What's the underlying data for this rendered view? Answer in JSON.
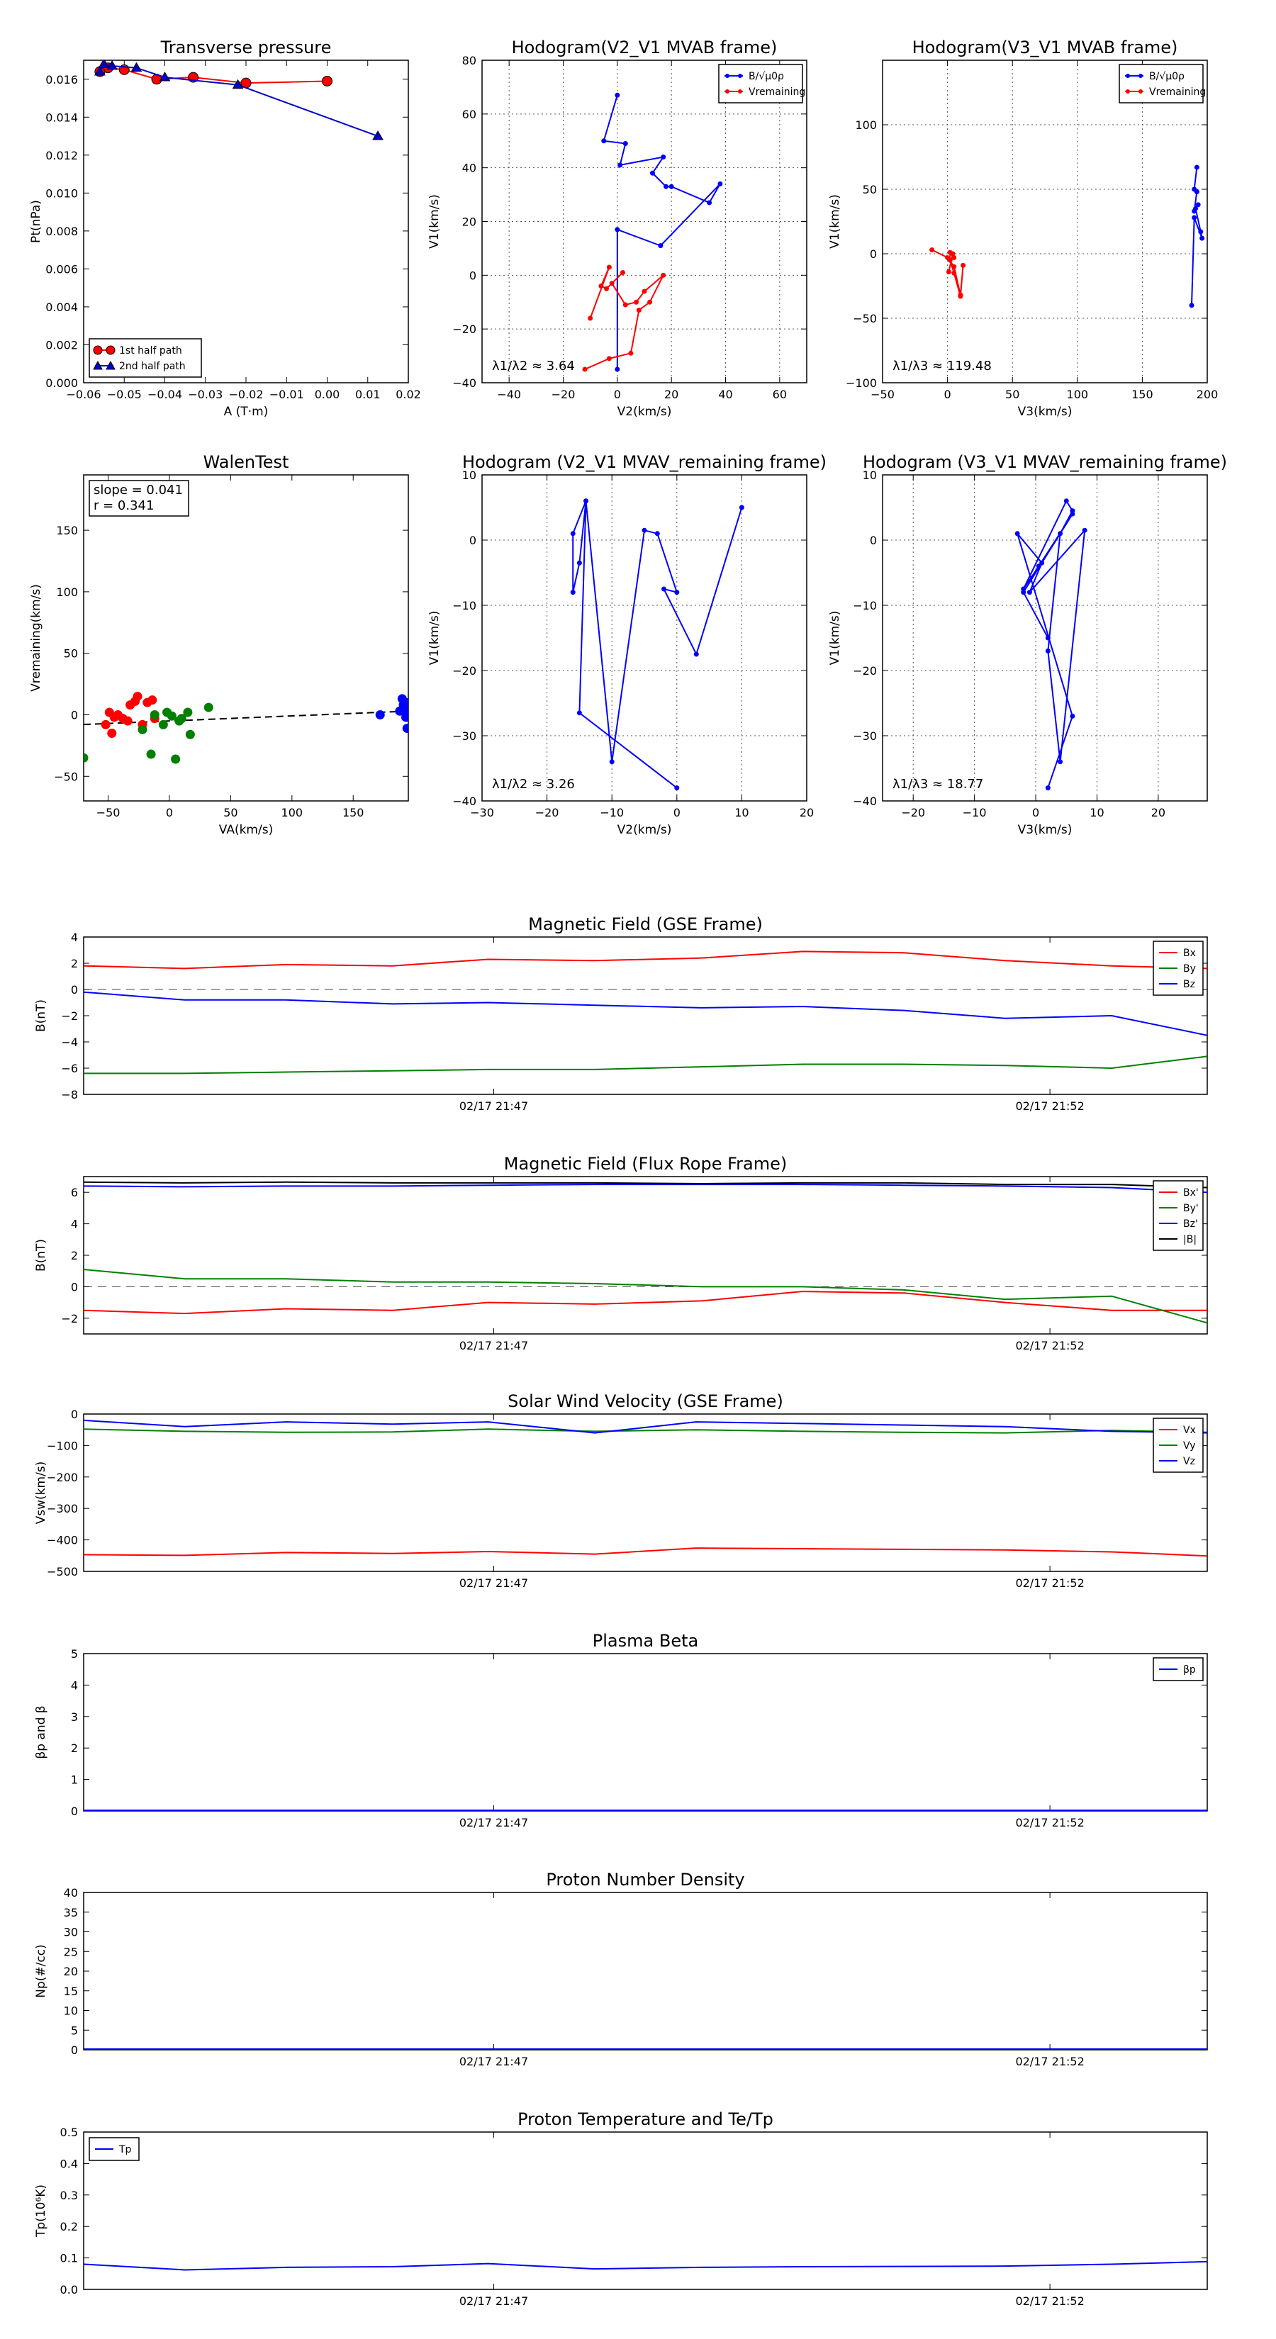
{
  "chart_data": [
    {
      "id": "tp",
      "type": "scatter",
      "title": "Transverse pressure",
      "xlabel": "A (T·m)",
      "ylabel": "Pt(nPa)",
      "xlim": [
        -0.06,
        0.02
      ],
      "ylim": [
        0,
        0.017
      ],
      "xticks": [
        -0.06,
        -0.05,
        -0.04,
        -0.03,
        -0.02,
        -0.01,
        0.0,
        0.01,
        0.02
      ],
      "xticklabels": [
        "−0.06",
        "−0.05",
        "−0.04",
        "−0.03",
        "−0.02",
        "−0.01",
        "0.00",
        "0.01",
        "0.02"
      ],
      "yticks": [
        0,
        0.002,
        0.004,
        0.006,
        0.008,
        0.01,
        0.012,
        0.014,
        0.016
      ],
      "yticklabels": [
        "0.000",
        "0.002",
        "0.004",
        "0.006",
        "0.008",
        "0.010",
        "0.012",
        "0.014",
        "0.016"
      ],
      "legend_loc": "lower-left",
      "series": [
        {
          "name": "1st half path",
          "color": "#ff0000",
          "marker": "circle",
          "x": [
            0.0,
            -0.02,
            -0.033,
            -0.042,
            -0.05,
            -0.054,
            -0.056
          ],
          "y": [
            0.0159,
            0.0158,
            0.0161,
            0.016,
            0.0165,
            0.0166,
            0.0164
          ]
        },
        {
          "name": "2nd half path",
          "color": "#0000cc",
          "marker": "triangle",
          "x": [
            -0.056,
            -0.055,
            -0.053,
            -0.047,
            -0.04,
            -0.022,
            0.0125
          ],
          "y": [
            0.0164,
            0.0168,
            0.0167,
            0.0166,
            0.0161,
            0.0157,
            0.013
          ]
        }
      ]
    },
    {
      "id": "hodo1",
      "type": "line",
      "title": "Hodogram(V2_V1 MVAB frame)",
      "xlabel": "V2(km/s)",
      "ylabel": "V1(km/s)",
      "xlim": [
        -50,
        70
      ],
      "ylim": [
        -40,
        80
      ],
      "xticks": [
        -40,
        -20,
        0,
        20,
        40,
        60
      ],
      "xticklabels": [
        "−40",
        "−20",
        "0",
        "20",
        "40",
        "60"
      ],
      "yticks": [
        -40,
        -20,
        0,
        20,
        40,
        60,
        80
      ],
      "yticklabels": [
        "−40",
        "−20",
        "0",
        "20",
        "40",
        "60",
        "80"
      ],
      "annotation": "λ1/λ2 ≈ 3.64",
      "legend_loc": "top-right",
      "series": [
        {
          "name": "B/√μ0ρ",
          "color": "#0000ff",
          "x": [
            0,
            0,
            16,
            38,
            34,
            20,
            18,
            13,
            17,
            1,
            3,
            -5,
            0
          ],
          "y": [
            -35,
            17,
            11,
            34,
            27,
            33,
            33,
            38,
            44,
            41,
            49,
            50,
            67
          ]
        },
        {
          "name": "Vremaining",
          "color": "#ff0000",
          "x": [
            -12,
            -3,
            5,
            8,
            12,
            17,
            10,
            7,
            3,
            -2,
            2,
            -4,
            -6,
            -3,
            -10
          ],
          "y": [
            -35,
            -31,
            -29,
            -13,
            -10,
            0,
            -6,
            -10,
            -11,
            -3,
            1,
            -5,
            -4,
            3,
            -16
          ]
        }
      ]
    },
    {
      "id": "hodo2",
      "type": "line",
      "title": "Hodogram(V3_V1 MVAB frame)",
      "xlabel": "V3(km/s)",
      "ylabel": "V1(km/s)",
      "xlim": [
        -50,
        200
      ],
      "ylim": [
        -100,
        150
      ],
      "xticks": [
        -50,
        0,
        50,
        100,
        150,
        200
      ],
      "xticklabels": [
        "−50",
        "0",
        "50",
        "100",
        "150",
        "200"
      ],
      "yticks": [
        -100,
        -50,
        0,
        50,
        100
      ],
      "yticklabels": [
        "−100",
        "−50",
        "0",
        "50",
        "100"
      ],
      "annotation": "λ1/λ3 ≈ 119.48",
      "legend_loc": "top-right",
      "series": [
        {
          "name": "B/√μ0ρ",
          "color": "#0000ff",
          "x": [
            188,
            190,
            196,
            195,
            191,
            193,
            190,
            192,
            190,
            192
          ],
          "y": [
            -40,
            28,
            12,
            17,
            35,
            38,
            33,
            48,
            50,
            67
          ]
        },
        {
          "name": "Vremaining",
          "color": "#ff0000",
          "x": [
            -12,
            0,
            5,
            10,
            12,
            10,
            5,
            2,
            2,
            5,
            4,
            1
          ],
          "y": [
            3,
            -3,
            -10,
            -32,
            -9,
            -33,
            -15,
            -5,
            1,
            -3,
            0,
            -14
          ]
        }
      ]
    },
    {
      "id": "walen",
      "type": "scatter",
      "title": "WalenTest",
      "xlabel": "VA(km/s)",
      "ylabel": "Vremaining(km/s)",
      "xlim": [
        -70,
        195
      ],
      "ylim": [
        -70,
        195
      ],
      "xticks": [
        -50,
        0,
        50,
        100,
        150
      ],
      "xticklabels": [
        "−50",
        "0",
        "50",
        "100",
        "150"
      ],
      "yticks": [
        -50,
        0,
        50,
        100,
        150
      ],
      "yticklabels": [
        "−50",
        "0",
        "50",
        "100",
        "150"
      ],
      "annotation": [
        "slope = 0.041",
        "r = 0.341"
      ],
      "fit": {
        "slope": 0.041,
        "intercept": -5,
        "x": [
          -70,
          195
        ]
      },
      "series": [
        {
          "name": "red",
          "color": "#ff0000",
          "x": [
            -52,
            -49,
            -47,
            -45,
            -42,
            -38,
            -34,
            -32,
            -28,
            -26,
            -22,
            -18,
            -14,
            -12
          ],
          "y": [
            -8,
            2,
            -15,
            -2,
            0,
            -3,
            -5,
            8,
            11,
            15,
            -8,
            10,
            12,
            -3
          ]
        },
        {
          "name": "green",
          "color": "#008000",
          "x": [
            -70,
            -22,
            -15,
            -12,
            -5,
            -2,
            2,
            5,
            8,
            10,
            15,
            17,
            32
          ],
          "y": [
            -35,
            -12,
            -32,
            0,
            -8,
            2,
            -1,
            -36,
            -5,
            -3,
            2,
            -16,
            6
          ]
        },
        {
          "name": "blue",
          "color": "#0000ff",
          "x": [
            172,
            188,
            190,
            191,
            192,
            193,
            193,
            194,
            194,
            195
          ],
          "y": [
            0,
            3,
            13,
            8,
            5,
            10,
            -2,
            0,
            -11,
            3
          ]
        }
      ]
    },
    {
      "id": "hodo3",
      "type": "line",
      "title": "Hodogram (V2_V1 MVAV_remaining frame)",
      "xlabel": "V2(km/s)",
      "ylabel": "V1(km/s)",
      "xlim": [
        -30,
        20
      ],
      "ylim": [
        -40,
        10
      ],
      "xticks": [
        -30,
        -20,
        -10,
        0,
        10,
        20
      ],
      "xticklabels": [
        "−30",
        "−20",
        "−10",
        "0",
        "10",
        "20"
      ],
      "yticks": [
        -40,
        -30,
        -20,
        -10,
        0,
        10
      ],
      "yticklabels": [
        "−40",
        "−30",
        "−20",
        "−10",
        "0",
        "10"
      ],
      "annotation": "λ1/λ2 ≈ 3.26",
      "series": [
        {
          "name": "V",
          "color": "#0000ff",
          "x": [
            0,
            -15,
            -14,
            -16,
            -16,
            -15,
            -14,
            -10,
            -5,
            -3,
            0,
            -2,
            3,
            10
          ],
          "y": [
            -38,
            -26.5,
            6,
            1,
            -8,
            -3.5,
            6,
            -34,
            1.5,
            1,
            -8,
            -7.5,
            -17.5,
            5
          ]
        }
      ]
    },
    {
      "id": "hodo4",
      "type": "line",
      "title": "Hodogram (V3_V1 MVAV_remaining frame)",
      "xlabel": "V3(km/s)",
      "ylabel": "V1(km/s)",
      "xlim": [
        -25,
        28
      ],
      "ylim": [
        -40,
        10
      ],
      "xticks": [
        -20,
        -10,
        0,
        10,
        20
      ],
      "xticklabels": [
        "−20",
        "−10",
        "0",
        "10",
        "20"
      ],
      "yticks": [
        -40,
        -30,
        -20,
        -10,
        0,
        10
      ],
      "yticklabels": [
        "−40",
        "−30",
        "−20",
        "−10",
        "0",
        "10"
      ],
      "annotation": "λ1/λ3 ≈ 18.77",
      "series": [
        {
          "name": "V",
          "color": "#0000ff",
          "x": [
            2,
            6,
            -3,
            1,
            -1,
            8,
            4,
            2,
            4,
            6,
            5,
            -2,
            0.5,
            6,
            -2,
            2
          ],
          "y": [
            -38,
            -27,
            1,
            -3.5,
            -8,
            1.5,
            -34,
            -17,
            1,
            4.5,
            6,
            -7.5,
            -4,
            4,
            -8,
            -15
          ]
        }
      ]
    },
    {
      "id": "mag_gse",
      "type": "line",
      "title": "Magnetic Field (GSE Frame)",
      "ylabel": "B(nT)",
      "ylim": [
        -8,
        4
      ],
      "yticks": [
        -8,
        -6,
        -4,
        -2,
        0,
        2,
        4
      ],
      "yticklabels": [
        "−8",
        "−6",
        "−4",
        "−2",
        "0",
        "2",
        "4"
      ],
      "xticks": [
        0.365,
        0.86
      ],
      "xticklabels": [
        "02/17 21:47",
        "02/17 21:52"
      ],
      "zero_line": true,
      "legend_loc": "top-right",
      "x": [
        0,
        0.09,
        0.18,
        0.275,
        0.36,
        0.455,
        0.55,
        0.64,
        0.73,
        0.82,
        0.915,
        1.0
      ],
      "series": [
        {
          "name": "Bx",
          "color": "#ff0000",
          "values": [
            1.8,
            1.6,
            1.9,
            1.8,
            2.3,
            2.2,
            2.4,
            2.9,
            2.8,
            2.2,
            1.8,
            1.6
          ]
        },
        {
          "name": "By",
          "color": "#008000",
          "values": [
            -6.4,
            -6.4,
            -6.3,
            -6.2,
            -6.1,
            -6.1,
            -5.9,
            -5.7,
            -5.7,
            -5.8,
            -6.0,
            -5.1
          ]
        },
        {
          "name": "Bz",
          "color": "#0000ff",
          "values": [
            -0.2,
            -0.8,
            -0.8,
            -1.1,
            -1.0,
            -1.2,
            -1.4,
            -1.3,
            -1.6,
            -2.2,
            -2.0,
            -3.5
          ]
        }
      ]
    },
    {
      "id": "mag_fr",
      "type": "line",
      "title": "Magnetic Field (Flux Rope Frame)",
      "ylabel": "B(nT)",
      "ylim": [
        -3,
        7
      ],
      "yticks": [
        -2,
        0,
        2,
        4,
        6
      ],
      "yticklabels": [
        "−2",
        "0",
        "2",
        "4",
        "6"
      ],
      "xticks": [
        0.365,
        0.86
      ],
      "xticklabels": [
        "02/17 21:47",
        "02/17 21:52"
      ],
      "zero_line": true,
      "legend_loc": "top-right",
      "x": [
        0,
        0.09,
        0.18,
        0.275,
        0.36,
        0.455,
        0.55,
        0.64,
        0.73,
        0.82,
        0.915,
        1.0
      ],
      "series": [
        {
          "name": "Bx'",
          "color": "#ff0000",
          "values": [
            -1.5,
            -1.7,
            -1.4,
            -1.5,
            -1.0,
            -1.1,
            -0.9,
            -0.3,
            -0.4,
            -1.0,
            -1.5,
            -1.5
          ]
        },
        {
          "name": "By'",
          "color": "#008000",
          "values": [
            1.1,
            0.5,
            0.5,
            0.3,
            0.3,
            0.2,
            0.0,
            0.0,
            -0.2,
            -0.8,
            -0.6,
            -2.3
          ]
        },
        {
          "name": "Bz'",
          "color": "#0000ff",
          "values": [
            6.4,
            6.35,
            6.4,
            6.4,
            6.45,
            6.5,
            6.5,
            6.5,
            6.45,
            6.4,
            6.3,
            6.0
          ]
        },
        {
          "name": "|B|",
          "color": "#000000",
          "values": [
            6.65,
            6.6,
            6.65,
            6.6,
            6.6,
            6.6,
            6.55,
            6.6,
            6.6,
            6.5,
            6.5,
            6.3
          ]
        }
      ]
    },
    {
      "id": "vsw",
      "type": "line",
      "title": "Solar Wind Velocity (GSE Frame)",
      "ylabel": "Vsw(km/s)",
      "ylim": [
        -500,
        0
      ],
      "yticks": [
        -500,
        -400,
        -300,
        -200,
        -100,
        0
      ],
      "yticklabels": [
        "−500",
        "−400",
        "−300",
        "−200",
        "−100",
        "0"
      ],
      "xticks": [
        0.365,
        0.86
      ],
      "xticklabels": [
        "02/17 21:47",
        "02/17 21:52"
      ],
      "legend_loc": "top-right",
      "x": [
        0,
        0.09,
        0.18,
        0.275,
        0.36,
        0.455,
        0.545,
        0.64,
        0.73,
        0.82,
        0.915,
        1.0
      ],
      "series": [
        {
          "name": "Vx",
          "color": "#ff0000",
          "values": [
            -447,
            -449,
            -440,
            -443,
            -437,
            -445,
            -426,
            -428,
            -430,
            -432,
            -438,
            -451
          ]
        },
        {
          "name": "Vy",
          "color": "#008000",
          "values": [
            -48,
            -55,
            -58,
            -57,
            -48,
            -55,
            -50,
            -55,
            -58,
            -60,
            -52,
            -58
          ]
        },
        {
          "name": "Vz",
          "color": "#0000ff",
          "values": [
            -20,
            -40,
            -25,
            -32,
            -25,
            -60,
            -25,
            -30,
            -35,
            -40,
            -55,
            -60
          ]
        }
      ]
    },
    {
      "id": "beta",
      "type": "line",
      "title": "Plasma Beta",
      "ylabel": "βp and β",
      "ylim": [
        0,
        5
      ],
      "yticks": [
        0,
        1,
        2,
        3,
        4,
        5
      ],
      "yticklabels": [
        "0",
        "1",
        "2",
        "3",
        "4",
        "5"
      ],
      "xticks": [
        0.365,
        0.86
      ],
      "xticklabels": [
        "02/17 21:47",
        "02/17 21:52"
      ],
      "legend_loc": "top-right",
      "x": [
        0,
        0.5,
        1.0
      ],
      "series": [
        {
          "name": "βp",
          "color": "#0000ff",
          "values": [
            0.02,
            0.02,
            0.02
          ]
        }
      ]
    },
    {
      "id": "np",
      "type": "line",
      "title": "Proton Number Density",
      "ylabel": "Np(#/cc)",
      "ylim": [
        0,
        40
      ],
      "yticks": [
        0,
        5,
        10,
        15,
        20,
        25,
        30,
        35,
        40
      ],
      "yticklabels": [
        "0",
        "5",
        "10",
        "15",
        "20",
        "25",
        "30",
        "35",
        "40"
      ],
      "xticks": [
        0.365,
        0.86
      ],
      "xticklabels": [
        "02/17 21:47",
        "02/17 21:52"
      ],
      "x": [
        0,
        0.5,
        1.0
      ],
      "series": [
        {
          "name": "Np",
          "color": "#0000ff",
          "values": [
            0.2,
            0.2,
            0.2
          ]
        }
      ]
    },
    {
      "id": "tp_temp",
      "type": "line",
      "title": "Proton Temperature and Te/Tp",
      "ylabel": "Tp(10⁶K)",
      "ylim": [
        0,
        0.5
      ],
      "yticks": [
        0,
        0.1,
        0.2,
        0.3,
        0.4,
        0.5
      ],
      "yticklabels": [
        "0.0",
        "0.1",
        "0.2",
        "0.3",
        "0.4",
        "0.5"
      ],
      "xticks": [
        0.365,
        0.86
      ],
      "xticklabels": [
        "02/17 21:47",
        "02/17 21:52"
      ],
      "legend_loc": "top-left",
      "x": [
        0,
        0.09,
        0.18,
        0.275,
        0.36,
        0.455,
        0.55,
        0.64,
        0.73,
        0.82,
        0.915,
        1.0
      ],
      "series": [
        {
          "name": "Tp",
          "color": "#0000ff",
          "values": [
            0.08,
            0.062,
            0.07,
            0.072,
            0.082,
            0.065,
            0.07,
            0.072,
            0.073,
            0.074,
            0.08,
            0.088
          ]
        }
      ]
    }
  ]
}
